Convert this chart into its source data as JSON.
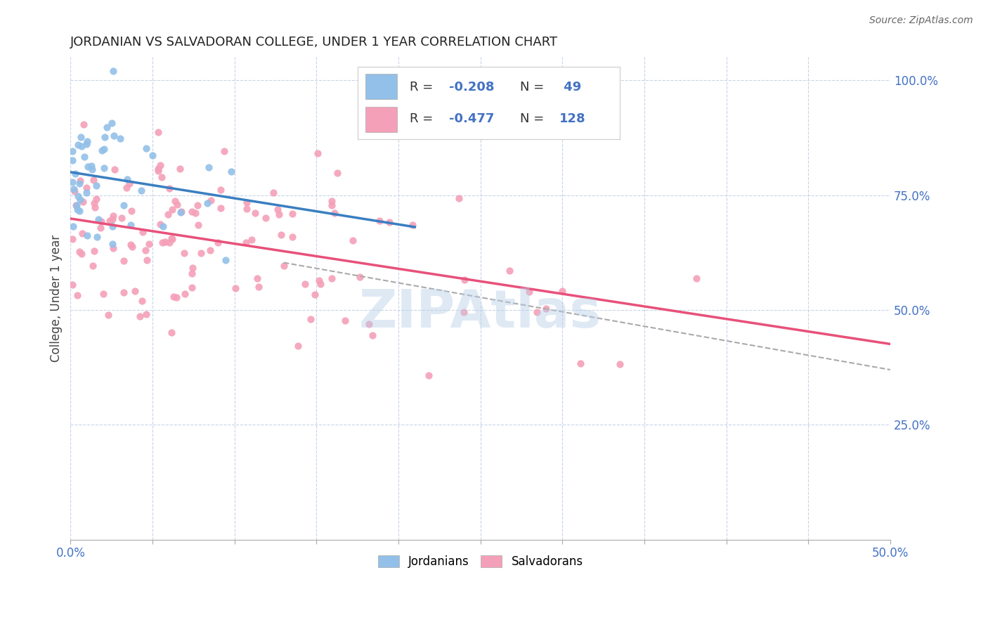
{
  "title": "JORDANIAN VS SALVADORAN COLLEGE, UNDER 1 YEAR CORRELATION CHART",
  "source_text": "Source: ZipAtlas.com",
  "ylabel": "College, Under 1 year",
  "xlim": [
    0.0,
    0.5
  ],
  "ylim": [
    0.0,
    1.05
  ],
  "xticks": [
    0.0,
    0.05,
    0.1,
    0.15,
    0.2,
    0.25,
    0.3,
    0.35,
    0.4,
    0.45,
    0.5
  ],
  "yticks_right": [
    0.25,
    0.5,
    0.75,
    1.0
  ],
  "yticklabels_right": [
    "25.0%",
    "50.0%",
    "75.0%",
    "100.0%"
  ],
  "color_jordanian": "#92c0e8",
  "color_salvadoran": "#f4a0b8",
  "color_line_jordanian": "#3a7fc1",
  "color_line_salvadoran": "#e8507a",
  "color_axis_label": "#4472c4",
  "color_legend_r": "#4472c4",
  "background_color": "#ffffff",
  "grid_color": "#c8d4e8",
  "watermark_text": "ZIPAtlas",
  "n_jordanian": 49,
  "n_salvadoran": 128,
  "r_jordanian": -0.208,
  "r_salvadoran": -0.477,
  "title_fontsize": 13,
  "axis_fontsize": 12,
  "legend_fontsize": 14
}
